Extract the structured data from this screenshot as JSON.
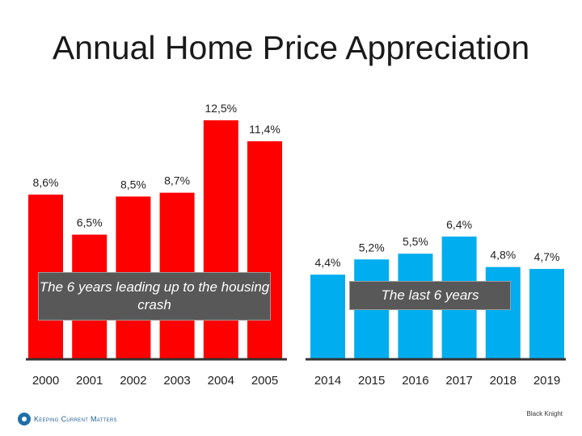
{
  "title": "Annual Home Price Appreciation",
  "chart_data": [
    {
      "type": "bar",
      "title": "Annual Home Price Appreciation",
      "categories": [
        "2000",
        "2001",
        "2002",
        "2003",
        "2004",
        "2005"
      ],
      "values": [
        8.6,
        6.5,
        8.5,
        8.7,
        12.5,
        11.4
      ],
      "labels": [
        "8,6%",
        "6,5%",
        "8,5%",
        "8,7%",
        "12,5%",
        "11,4%"
      ],
      "color": "#ff0000",
      "ylim": [
        0,
        14
      ],
      "caption": "The 6 years leading up to the housing crash"
    },
    {
      "type": "bar",
      "categories": [
        "2014",
        "2015",
        "2016",
        "2017",
        "2018",
        "2019"
      ],
      "values": [
        4.4,
        5.2,
        5.5,
        6.4,
        4.8,
        4.7
      ],
      "labels": [
        "4,4%",
        "5,2%",
        "5,5%",
        "6,4%",
        "4,8%",
        "4,7%"
      ],
      "color": "#00aeef",
      "ylim": [
        0,
        14
      ],
      "caption": "The last 6 years"
    }
  ],
  "footer": {
    "logo_text": "Keeping Current Matters",
    "logo_icon": "kcm-logo-icon",
    "source": "Black Knight"
  }
}
